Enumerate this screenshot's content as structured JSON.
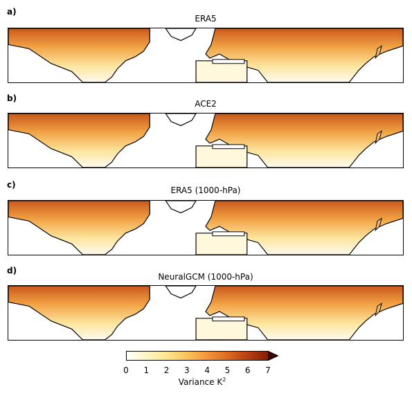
{
  "panels": [
    {
      "letter": "a)",
      "title": "ERA5"
    },
    {
      "letter": "b)",
      "title": "ACE2"
    },
    {
      "letter": "c)",
      "title": "ERA5 (1000-hPa)"
    },
    {
      "letter": "d)",
      "title": "NeuralGCM (1000-hPa)"
    }
  ],
  "colorbar": {
    "ticks": [
      "0",
      "1",
      "2",
      "3",
      "4",
      "5",
      "6",
      "7"
    ],
    "label_main": "Variance K",
    "label_sup": "2",
    "range": [
      0,
      7
    ],
    "extend": "max",
    "colors": [
      "#ffffff",
      "#fff6c4",
      "#fde58a",
      "#fbc15a",
      "#f3963a",
      "#de6a24",
      "#b63e10",
      "#801e06",
      "#3d0500"
    ]
  }
}
